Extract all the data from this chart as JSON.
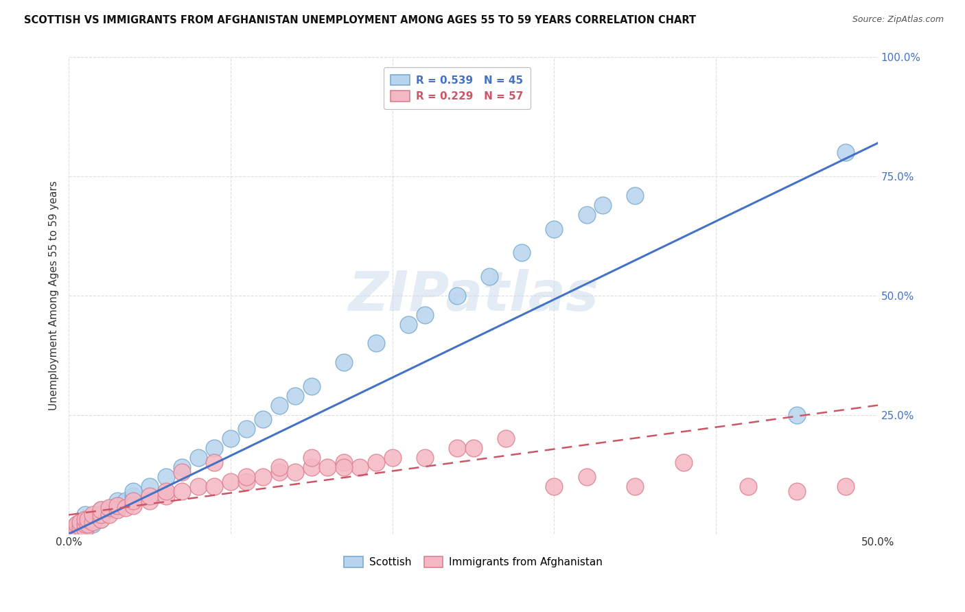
{
  "title": "SCOTTISH VS IMMIGRANTS FROM AFGHANISTAN UNEMPLOYMENT AMONG AGES 55 TO 59 YEARS CORRELATION CHART",
  "source": "Source: ZipAtlas.com",
  "ylabel": "Unemployment Among Ages 55 to 59 years",
  "xlim": [
    0.0,
    0.5
  ],
  "ylim": [
    0.0,
    1.0
  ],
  "xticks": [
    0.0,
    0.1,
    0.2,
    0.3,
    0.4,
    0.5
  ],
  "yticks": [
    0.0,
    0.25,
    0.5,
    0.75,
    1.0
  ],
  "xticklabels": [
    "0.0%",
    "",
    "",
    "",
    "",
    "50.0%"
  ],
  "yticklabels": [
    "",
    "25.0%",
    "50.0%",
    "75.0%",
    "100.0%"
  ],
  "scottish_R": 0.539,
  "scottish_N": 45,
  "afghan_R": 0.229,
  "afghan_N": 57,
  "scottish_color": "#b8d4ee",
  "scottish_edge": "#7aaacf",
  "scottish_line_color": "#4472c4",
  "afghan_color": "#f4b8c4",
  "afghan_edge": "#dd8090",
  "afghan_line_color": "#cc5566",
  "background_color": "#ffffff",
  "grid_color": "#dddddd",
  "watermark": "ZIPatlas",
  "scottish_x": [
    0.005,
    0.005,
    0.005,
    0.007,
    0.007,
    0.01,
    0.01,
    0.01,
    0.01,
    0.012,
    0.015,
    0.015,
    0.02,
    0.02,
    0.02,
    0.025,
    0.03,
    0.03,
    0.035,
    0.04,
    0.04,
    0.05,
    0.06,
    0.07,
    0.08,
    0.09,
    0.1,
    0.11,
    0.12,
    0.13,
    0.14,
    0.15,
    0.17,
    0.19,
    0.21,
    0.22,
    0.24,
    0.26,
    0.28,
    0.3,
    0.32,
    0.33,
    0.35,
    0.45,
    0.48
  ],
  "scottish_y": [
    0.005,
    0.01,
    0.02,
    0.015,
    0.025,
    0.01,
    0.02,
    0.03,
    0.04,
    0.02,
    0.02,
    0.03,
    0.03,
    0.04,
    0.05,
    0.05,
    0.06,
    0.07,
    0.07,
    0.08,
    0.09,
    0.1,
    0.12,
    0.14,
    0.16,
    0.18,
    0.2,
    0.22,
    0.24,
    0.27,
    0.29,
    0.31,
    0.36,
    0.4,
    0.44,
    0.46,
    0.5,
    0.54,
    0.59,
    0.64,
    0.67,
    0.69,
    0.71,
    0.25,
    0.8
  ],
  "afghan_x": [
    0.003,
    0.005,
    0.005,
    0.007,
    0.007,
    0.01,
    0.01,
    0.01,
    0.012,
    0.012,
    0.015,
    0.015,
    0.02,
    0.02,
    0.02,
    0.025,
    0.025,
    0.03,
    0.03,
    0.035,
    0.04,
    0.04,
    0.05,
    0.05,
    0.06,
    0.06,
    0.07,
    0.08,
    0.09,
    0.1,
    0.11,
    0.12,
    0.13,
    0.14,
    0.15,
    0.16,
    0.17,
    0.18,
    0.19,
    0.2,
    0.22,
    0.24,
    0.25,
    0.27,
    0.3,
    0.32,
    0.35,
    0.38,
    0.42,
    0.45,
    0.48,
    0.07,
    0.09,
    0.11,
    0.13,
    0.15,
    0.17
  ],
  "afghan_y": [
    0.005,
    0.01,
    0.02,
    0.015,
    0.025,
    0.01,
    0.02,
    0.03,
    0.02,
    0.03,
    0.025,
    0.04,
    0.03,
    0.04,
    0.05,
    0.04,
    0.055,
    0.05,
    0.06,
    0.055,
    0.06,
    0.07,
    0.07,
    0.08,
    0.08,
    0.09,
    0.09,
    0.1,
    0.1,
    0.11,
    0.11,
    0.12,
    0.13,
    0.13,
    0.14,
    0.14,
    0.15,
    0.14,
    0.15,
    0.16,
    0.16,
    0.18,
    0.18,
    0.2,
    0.1,
    0.12,
    0.1,
    0.15,
    0.1,
    0.09,
    0.1,
    0.13,
    0.15,
    0.12,
    0.14,
    0.16,
    0.14
  ],
  "scottish_line_x": [
    0.0,
    0.5
  ],
  "scottish_line_y": [
    0.0,
    0.82
  ],
  "afghan_line_x": [
    0.0,
    0.5
  ],
  "afghan_line_y": [
    0.04,
    0.27
  ]
}
